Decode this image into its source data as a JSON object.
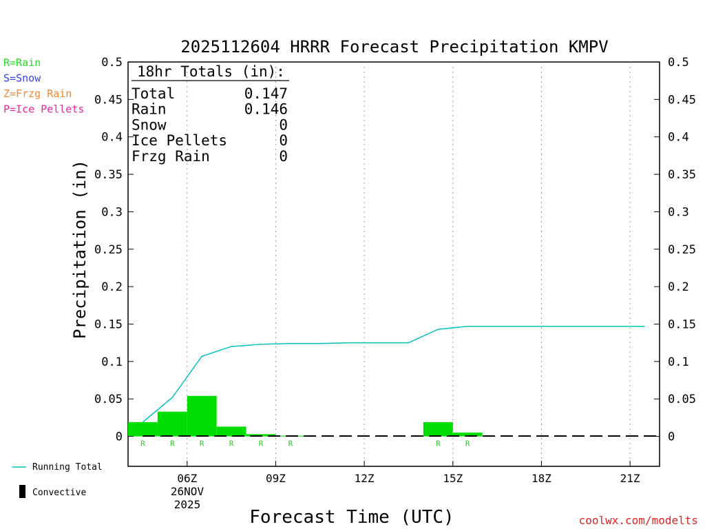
{
  "chart_data": {
    "type": "bar",
    "title": "2025112604 HRRR Forecast Precipitation KMPV",
    "xlabel": "Forecast Time (UTC)",
    "ylabel": "Precipitation (in)",
    "ylim": [
      -0.04,
      0.5
    ],
    "xlim": [
      4,
      22
    ],
    "y_ticks": [
      0,
      0.05,
      0.1,
      0.15,
      0.2,
      0.25,
      0.3,
      0.35,
      0.4,
      0.45,
      0.5
    ],
    "y_tick_labels": [
      "0",
      "0.05",
      "0.1",
      "0.15",
      "0.2",
      "0.25",
      "0.3",
      "0.35",
      "0.4",
      "0.45",
      "0.5"
    ],
    "x_ticks": [
      {
        "hour": 6,
        "label": "06Z"
      },
      {
        "hour": 9,
        "label": "09Z"
      },
      {
        "hour": 12,
        "label": "12Z"
      },
      {
        "hour": 15,
        "label": "15Z"
      },
      {
        "hour": 18,
        "label": "18Z"
      },
      {
        "hour": 21,
        "label": "21Z"
      }
    ],
    "date_line1": "26NOV",
    "date_line2": "2025",
    "hourly_precip": {
      "name": "Rain",
      "color": "#00dd00",
      "hours": [
        5,
        6,
        7,
        8,
        9,
        10,
        11,
        12,
        13,
        14,
        15,
        16,
        17,
        18,
        19,
        20,
        21,
        22
      ],
      "values": [
        0.019,
        0.033,
        0.054,
        0.013,
        0.003,
        0.001,
        0,
        0,
        0,
        0,
        0.019,
        0.005,
        0,
        0,
        0,
        0,
        0,
        0
      ],
      "type_labels": [
        "R",
        "R",
        "R",
        "R",
        "R",
        "R",
        "",
        "",
        "",
        "",
        "R",
        "R",
        "",
        "",
        "",
        "",
        "",
        ""
      ]
    },
    "running_total": {
      "name": "Running Total",
      "color": "#00c0c0",
      "hours": [
        5,
        6,
        7,
        8,
        9,
        10,
        11,
        12,
        13,
        14,
        15,
        16,
        17,
        18,
        19,
        20,
        21,
        22
      ],
      "values": [
        0.019,
        0.052,
        0.107,
        0.12,
        0.123,
        0.124,
        0.124,
        0.125,
        0.125,
        0.125,
        0.143,
        0.147,
        0.147,
        0.147,
        0.147,
        0.147,
        0.147,
        0.147
      ]
    },
    "convective": {
      "name": "Convective",
      "hours": [],
      "values": []
    }
  },
  "totals_box": {
    "header": "18hr Totals (in):",
    "rows": [
      {
        "label": "Total",
        "value": "0.147"
      },
      {
        "label": "Rain",
        "value": "0.146"
      },
      {
        "label": "Snow",
        "value": "0"
      },
      {
        "label": "Ice Pellets",
        "value": "0"
      },
      {
        "label": "Frzg Rain",
        "value": "0"
      }
    ]
  },
  "type_legend": [
    {
      "text": "R=Rain",
      "color": "#22dd22"
    },
    {
      "text": "S=Snow",
      "color": "#3344ee"
    },
    {
      "text": "Z=Frzg Rain",
      "color": "#ee8833"
    },
    {
      "text": "P=Ice Pellets",
      "color": "#ee2299"
    }
  ],
  "series_legend": {
    "running_total": "Running Total",
    "convective": "Convective"
  },
  "credit": "coolwx.com/modelts"
}
